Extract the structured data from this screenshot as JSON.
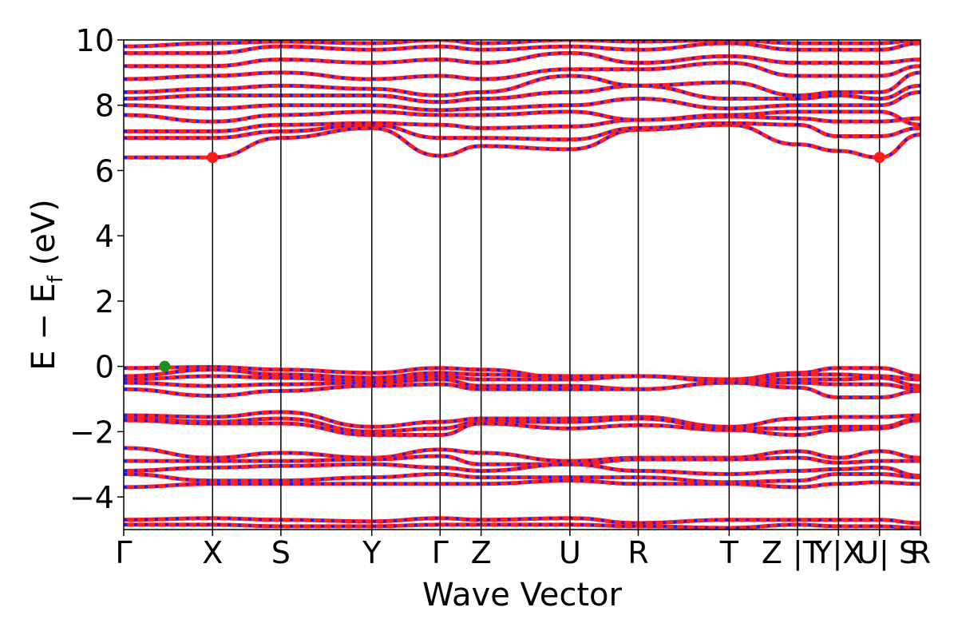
{
  "chart_data": {
    "type": "line",
    "title": "",
    "xlabel": "Wave Vector",
    "ylabel_main": "E − E",
    "ylabel_sub": "f",
    "ylabel_unit": " (eV)",
    "ylim": [
      -5,
      10
    ],
    "yticks": [
      -4,
      -2,
      0,
      2,
      4,
      6,
      8,
      10
    ],
    "ytick_labels": [
      "−4",
      "−2",
      "0",
      "2",
      "4",
      "6",
      "8",
      "10"
    ],
    "grid": false,
    "legend": "none",
    "kpath": [
      {
        "label": "Γ",
        "x": 0.0
      },
      {
        "label": "X",
        "x": 1.3
      },
      {
        "label": "S",
        "x": 2.3
      },
      {
        "label": "Y",
        "x": 3.63
      },
      {
        "label": "Γ",
        "x": 4.63
      },
      {
        "label": "Z",
        "x": 5.23
      },
      {
        "label": "U",
        "x": 6.53
      },
      {
        "label": "R",
        "x": 7.53
      },
      {
        "label": "T",
        "x": 8.86
      },
      {
        "label": "Z",
        "x": 9.86
      },
      {
        "label": "|T",
        "x": 9.86
      },
      {
        "label": "Y|X",
        "x": 10.46
      },
      {
        "label": "U| S",
        "x": 11.06
      },
      {
        "label": "R",
        "x": 11.66
      }
    ],
    "vlines": [
      1.3,
      2.3,
      3.63,
      4.63,
      5.23,
      6.53,
      7.53,
      8.86,
      9.86,
      10.46,
      11.06
    ],
    "segments": [
      {
        "from": 0,
        "to": 9
      },
      {
        "from": 10,
        "to": 11
      },
      {
        "from": 11,
        "to": 12
      },
      {
        "from": 12,
        "to": 13
      }
    ],
    "valence_bands": [
      [
        -0.05,
        -0.02,
        -0.1,
        -0.2,
        -0.05,
        -0.1,
        -0.35,
        -0.3,
        -0.4,
        -0.2,
        -0.2,
        -0.05,
        -0.05,
        -0.3
      ],
      [
        -0.3,
        -0.1,
        -0.25,
        -0.35,
        -0.2,
        -0.25,
        -0.3,
        -0.3,
        -0.45,
        -0.25,
        -0.25,
        -0.25,
        -0.3,
        -0.4
      ],
      [
        -0.4,
        -0.3,
        -0.35,
        -0.45,
        -0.3,
        -0.4,
        -0.4,
        -0.3,
        -0.45,
        -0.4,
        -0.4,
        -0.4,
        -0.35,
        -0.6
      ],
      [
        -0.5,
        -0.6,
        -0.55,
        -0.5,
        -0.4,
        -0.6,
        -0.6,
        -0.7,
        -0.5,
        -0.5,
        -0.5,
        -0.55,
        -0.55,
        -0.7
      ],
      [
        -0.7,
        -0.9,
        -0.75,
        -0.6,
        -0.55,
        -0.7,
        -0.7,
        -0.7,
        -0.5,
        -0.65,
        -0.65,
        -0.95,
        -0.95,
        -0.75
      ],
      [
        -1.5,
        -1.55,
        -1.4,
        -1.85,
        -1.7,
        -1.6,
        -1.6,
        -1.55,
        -1.85,
        -1.6,
        -1.6,
        -1.55,
        -1.55,
        -1.5
      ],
      [
        -1.6,
        -1.7,
        -1.6,
        -2.0,
        -1.9,
        -1.7,
        -1.7,
        -1.6,
        -1.9,
        -1.9,
        -1.9,
        -1.85,
        -1.85,
        -1.6
      ],
      [
        -1.65,
        -1.75,
        -1.75,
        -2.1,
        -2.1,
        -1.75,
        -1.9,
        -1.8,
        -1.95,
        -2.1,
        -2.1,
        -1.95,
        -1.9,
        -1.65
      ],
      [
        -2.5,
        -2.8,
        -2.65,
        -2.8,
        -2.55,
        -2.65,
        -2.9,
        -2.8,
        -2.8,
        -2.6,
        -2.6,
        -2.8,
        -2.6,
        -2.8
      ],
      [
        -2.9,
        -2.9,
        -2.9,
        -2.85,
        -2.75,
        -3.0,
        -3.0,
        -2.85,
        -2.85,
        -2.8,
        -2.8,
        -2.95,
        -2.9,
        -2.9
      ],
      [
        -3.2,
        -3.1,
        -3.05,
        -3.0,
        -3.1,
        -3.2,
        -3.0,
        -3.2,
        -3.3,
        -3.2,
        -3.2,
        -3.15,
        -3.1,
        -3.35
      ],
      [
        -3.3,
        -3.5,
        -3.5,
        -3.4,
        -3.3,
        -3.4,
        -3.4,
        -3.4,
        -3.55,
        -3.5,
        -3.5,
        -3.3,
        -3.3,
        -3.4
      ],
      [
        -3.7,
        -3.6,
        -3.6,
        -3.6,
        -3.6,
        -3.6,
        -3.5,
        -3.6,
        -3.6,
        -3.7,
        -3.7,
        -3.6,
        -3.55,
        -3.6
      ],
      [
        -4.7,
        -4.65,
        -4.7,
        -4.75,
        -4.65,
        -4.7,
        -4.65,
        -4.8,
        -4.7,
        -4.7,
        -4.7,
        -4.7,
        -4.7,
        -4.8
      ],
      [
        -4.85,
        -4.85,
        -4.9,
        -4.9,
        -4.85,
        -4.85,
        -4.85,
        -4.9,
        -4.95,
        -4.85,
        -4.85,
        -4.9,
        -4.9,
        -4.95
      ]
    ],
    "conduction_bands": [
      [
        6.4,
        6.4,
        7.0,
        7.3,
        6.45,
        6.75,
        6.65,
        7.25,
        7.4,
        6.8,
        6.8,
        6.6,
        6.4,
        7.1
      ],
      [
        7.0,
        7.0,
        7.2,
        7.4,
        7.0,
        7.0,
        6.95,
        7.3,
        7.45,
        7.4,
        7.4,
        7.05,
        7.05,
        7.3
      ],
      [
        7.2,
        7.2,
        7.4,
        7.45,
        7.4,
        7.3,
        7.35,
        7.55,
        7.65,
        7.6,
        7.6,
        7.5,
        7.5,
        7.6
      ],
      [
        7.7,
        7.5,
        7.7,
        7.8,
        7.7,
        7.7,
        7.8,
        7.55,
        7.7,
        7.8,
        7.8,
        7.8,
        7.8,
        7.4
      ],
      [
        8.0,
        7.9,
        8.0,
        8.0,
        7.85,
        7.9,
        8.0,
        8.2,
        7.9,
        8.0,
        8.0,
        8.0,
        8.0,
        8.4
      ],
      [
        8.2,
        8.3,
        8.3,
        8.3,
        8.1,
        8.2,
        8.4,
        8.6,
        8.2,
        8.2,
        8.2,
        8.3,
        8.2,
        8.6
      ],
      [
        8.4,
        8.5,
        8.6,
        8.5,
        8.3,
        8.4,
        8.9,
        8.6,
        8.7,
        8.3,
        8.3,
        8.4,
        8.4,
        9.0
      ],
      [
        8.8,
        8.9,
        9.0,
        8.8,
        8.9,
        8.8,
        9.1,
        9.1,
        9.3,
        8.9,
        8.9,
        8.9,
        8.9,
        9.2
      ],
      [
        9.2,
        9.2,
        9.4,
        9.3,
        9.4,
        9.3,
        9.6,
        9.3,
        9.5,
        9.3,
        9.3,
        9.3,
        9.3,
        9.4
      ],
      [
        9.6,
        9.6,
        9.8,
        9.7,
        9.8,
        9.7,
        9.8,
        9.7,
        9.9,
        9.7,
        9.7,
        9.7,
        9.7,
        9.9
      ],
      [
        9.8,
        9.9,
        9.95,
        9.9,
        10.0,
        9.9,
        10.0,
        9.95,
        10.0,
        9.9,
        9.9,
        9.9,
        9.9,
        10.0
      ]
    ],
    "markers": [
      {
        "name": "vbm",
        "x": 0.6,
        "y": 0.0,
        "color": "#228b22"
      },
      {
        "name": "cbm",
        "x": 1.3,
        "y": 6.4,
        "color": "#ff1a1a"
      },
      {
        "name": "cbm",
        "x": 11.06,
        "y": 6.4,
        "color": "#ff1a1a"
      }
    ],
    "colors": {
      "spin_up": "#ff2020",
      "spin_down": "#1a1aff",
      "vline": "#000000",
      "axis": "#000000"
    }
  }
}
